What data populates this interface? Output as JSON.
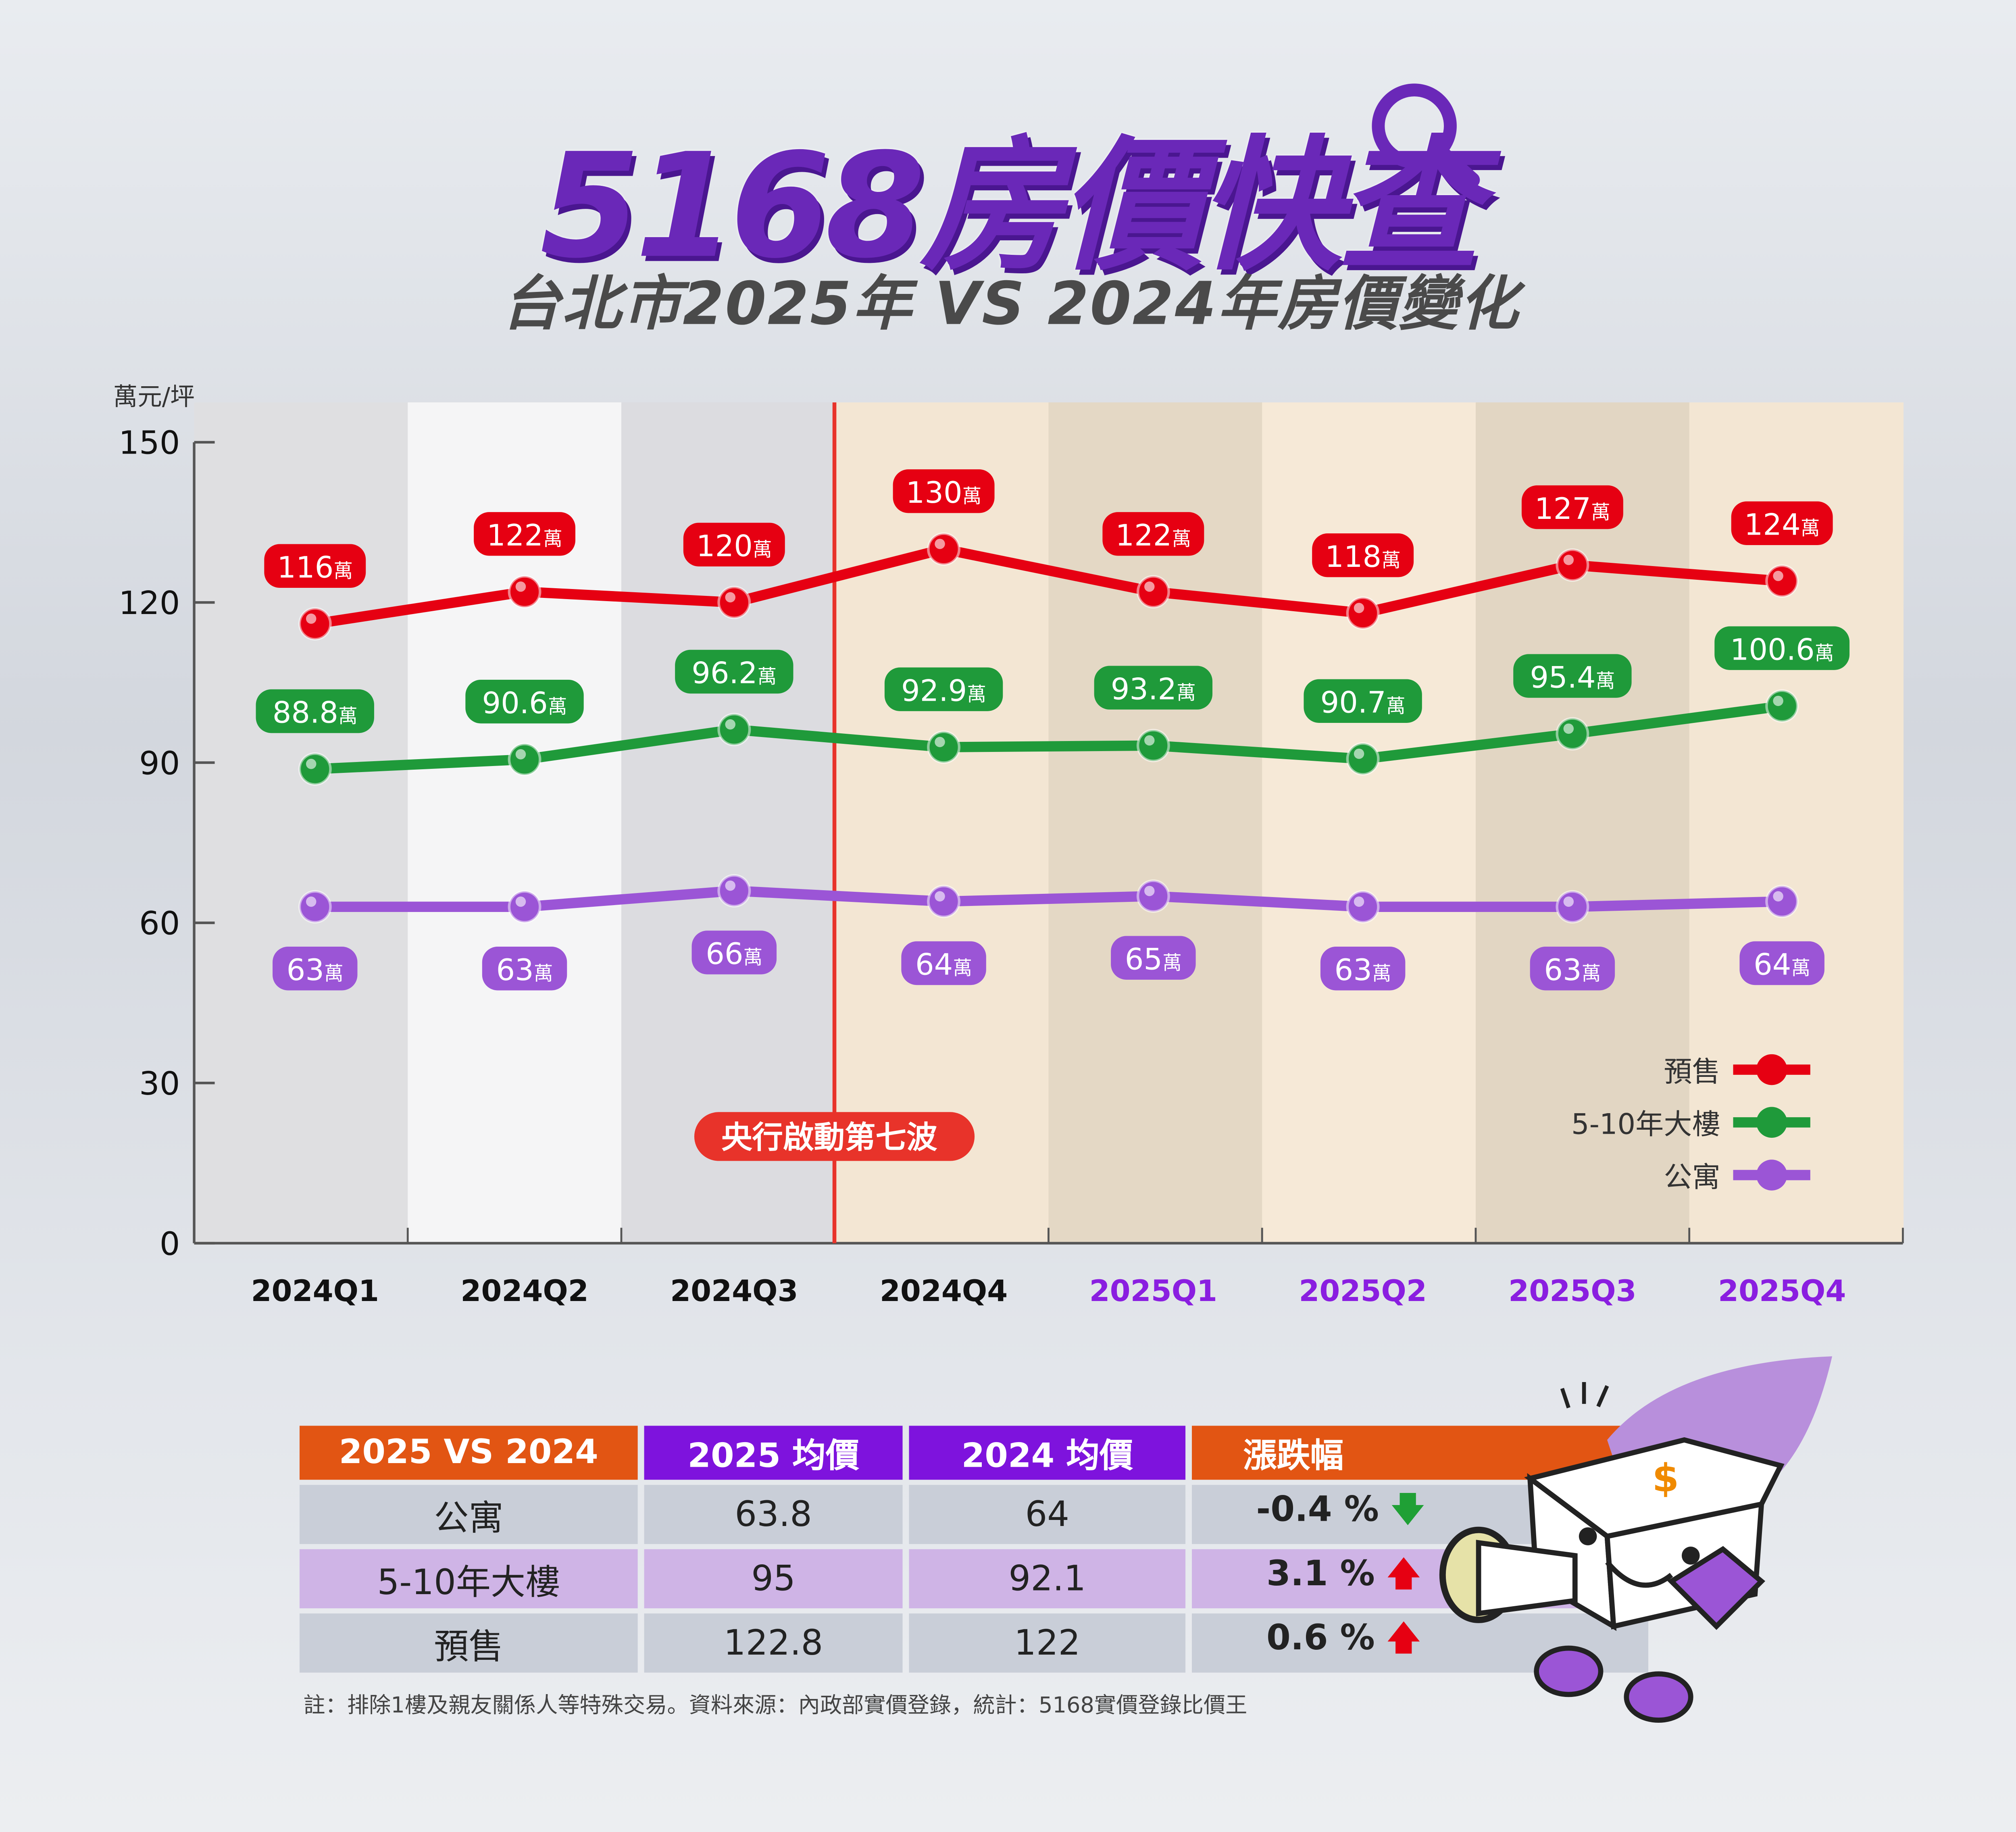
{
  "header": {
    "title": "5168房價快查",
    "subtitle": "台北市2025年 VS 2024年房價變化"
  },
  "chart_data": {
    "type": "line",
    "ylabel": "萬元/坪",
    "ylim": [
      0,
      150
    ],
    "yticks": [
      0,
      30,
      60,
      90,
      120,
      150
    ],
    "categories": [
      "2024Q1",
      "2024Q2",
      "2024Q3",
      "2024Q4",
      "2025Q1",
      "2025Q2",
      "2025Q3",
      "2025Q4"
    ],
    "series": [
      {
        "name": "預售",
        "color": "#e60012",
        "values": [
          116,
          122,
          120,
          130,
          122,
          118,
          127,
          124
        ]
      },
      {
        "name": "5-10年大樓",
        "color": "#1f9a3a",
        "values": [
          88.8,
          90.6,
          96.2,
          92.9,
          93.2,
          90.7,
          95.4,
          100.6
        ]
      },
      {
        "name": "公寓",
        "color": "#9b55d6",
        "values": [
          63,
          63,
          66,
          64,
          65,
          63,
          63,
          64
        ]
      }
    ],
    "value_unit": "萬",
    "annotation": "央行啟動第七波",
    "grid": false,
    "legend": "bottom-right",
    "highlight_categories_color": "#8a1ee0"
  },
  "table": {
    "headers": [
      "2025 VS 2024",
      "2025 均價",
      "2024 均價",
      "漲跌幅"
    ],
    "rows": [
      {
        "type": "公寓",
        "y2025": "63.8",
        "y2024": "64",
        "change": "-0.4 %",
        "direction": "down"
      },
      {
        "type": "5-10年大樓",
        "y2025": "95",
        "y2024": "92.1",
        "change": "3.1 %",
        "direction": "up"
      },
      {
        "type": "預售",
        "y2025": "122.8",
        "y2024": "122",
        "change": "0.6 %",
        "direction": "up"
      }
    ]
  },
  "footnote": "註：排除1樓及親友關係人等特殊交易。資料來源：內政部實價登錄，統計：5168實價登錄比價王"
}
